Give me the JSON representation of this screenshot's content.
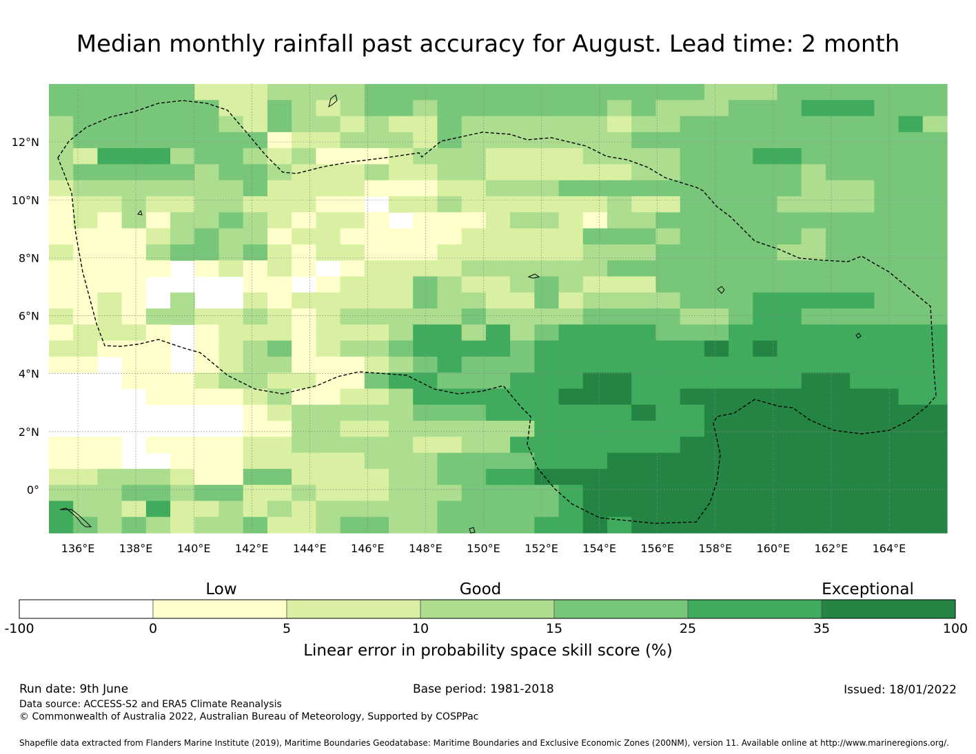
{
  "title": "Median monthly rainfall past accuracy for August. Lead time: 2 month",
  "map": {
    "lon_range": [
      135,
      166
    ],
    "lat_range": [
      -1.5,
      14
    ],
    "lon_ticks": [
      "136°E",
      "138°E",
      "140°E",
      "142°E",
      "144°E",
      "146°E",
      "148°E",
      "150°E",
      "152°E",
      "154°E",
      "156°E",
      "158°E",
      "160°E",
      "162°E",
      "164°E"
    ],
    "lat_ticks": [
      "12°N",
      "10°N",
      "8°N",
      "6°N",
      "4°N",
      "2°N",
      "0°"
    ],
    "grid_cols": 37,
    "grid_rows": 28,
    "skill_categories_legend": "0=below 0, 1=0-5, 2=5-10, 3=10-15, 4=15-25, 5=25-35, 6=35-100",
    "skill_grid": [
      "4444442223333444444444444443334444444",
      "4444444224323443444444434333444555444",
      "3444444324332322433333323344444444453",
      "3444444441223332433333334444444444444",
      "3255534432311123332222333344455444444",
      "3444443443222322332222223344444344444",
      "2333333342222111223334444444444333444",
      "1223223322211022322222232244443333444",
      "1213133432122101112332133444444444444",
      "1111234331221111122222444344444344444",
      "2111344342122111222222333444443344444",
      "1111101212101222233333344444444444444",
      "1111000011012224322343222444444444444",
      "1121030021222224332242333344455555444",
      "2121332232123333343333444433455444444",
      "1222101222122235535345555444555555555",
      "2211101234123345555455555556565555555",
      "1101101233111234544455555555555555555",
      "0001112332211455444555665555555665555",
      "0000111123112235555556665566666666655",
      "0000000012333334445555556556666666666",
      "0000000011332233333355555556666666666",
      "1110111122333332233555555566666666666",
      "1110011122222333444455566666666666666",
      "2233321144222233445566666666666666666",
      "3334434422322233344445666666666666666",
      "5332522323233333444445666666666666666",
      "5434323342234433444455656666666666666"
    ]
  },
  "colorbar": {
    "headings": [
      "Low",
      "Good",
      "Exceptional"
    ],
    "ticks": [
      "-100",
      "0",
      "5",
      "10",
      "15",
      "25",
      "35",
      "100"
    ],
    "colors": [
      "#ffffff",
      "#ffffcc",
      "#d9f0a3",
      "#addd8e",
      "#78c679",
      "#41ab5d",
      "#238443"
    ],
    "label": "Linear error in probability space skill score (%)"
  },
  "footer": {
    "run_date": "Run date: 9th June",
    "base_period": "Base period: 1981-2018",
    "issued": "Issued: 18/01/2022",
    "data_source": "Data source: ACCESS-S2 and ERA5 Climate Reanalysis",
    "copyright": "© Commonwealth of Australia 2022, Australian Bureau of Meteorology, Supported by COSPPac",
    "shapefile": "Shapefile data extracted from Flanders Marine Institute (2019), Maritime Boundaries Geodatabase: Maritime Boundaries and Exclusive Economic Zones (200NM), version 11. Available online at http://www.marineregions.org/."
  }
}
